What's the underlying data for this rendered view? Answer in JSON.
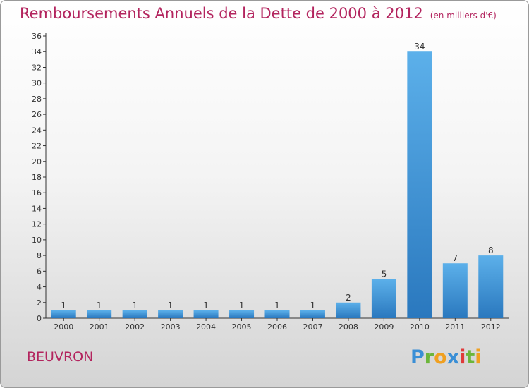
{
  "header": {
    "title": "Remboursements Annuels de la Dette de 2000 à 2012",
    "subtitle": "(en milliers d'€)"
  },
  "footer": {
    "place": "BEUVRON",
    "brand_letters": [
      {
        "ch": "P",
        "color": "#3a8fd6"
      },
      {
        "ch": "r",
        "color": "#6cb63a"
      },
      {
        "ch": "o",
        "color": "#f0a020"
      },
      {
        "ch": "x",
        "color": "#3a8fd6"
      },
      {
        "ch": "i",
        "color": "#e03a3a"
      },
      {
        "ch": "t",
        "color": "#6cb63a"
      },
      {
        "ch": "i",
        "color": "#f0a020"
      }
    ]
  },
  "colors": {
    "bar_top": "#5cb0ea",
    "bar_bottom": "#2a78be",
    "title": "#b3245e",
    "axis": "#333333"
  },
  "chart_data": {
    "type": "bar",
    "categories": [
      "2000",
      "2001",
      "2002",
      "2003",
      "2004",
      "2005",
      "2006",
      "2007",
      "2008",
      "2009",
      "2010",
      "2011",
      "2012"
    ],
    "values": [
      1,
      1,
      1,
      1,
      1,
      1,
      1,
      1,
      2,
      5,
      34,
      7,
      8
    ],
    "ylim": [
      0,
      36
    ],
    "yticks": [
      0,
      2,
      4,
      6,
      8,
      10,
      12,
      14,
      16,
      18,
      20,
      22,
      24,
      26,
      28,
      30,
      32,
      34,
      36
    ],
    "grid": false
  }
}
